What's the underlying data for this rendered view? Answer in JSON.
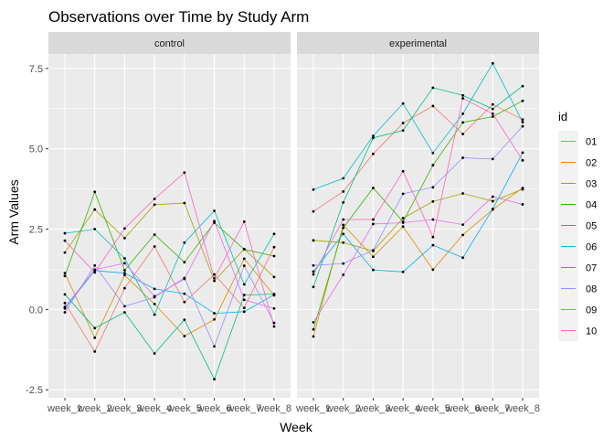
{
  "chart_data": {
    "type": "line",
    "title": "Observations over Time by Study Arm",
    "xlabel": "Week",
    "ylabel": "Arm Values",
    "ylim": [
      -2.75,
      7.95
    ],
    "yticks": [
      -2.5,
      0.0,
      2.5,
      5.0,
      7.5
    ],
    "ytick_labels": [
      "-2.5",
      "0.0",
      "2.5",
      "5.0",
      "7.5"
    ],
    "categories": [
      "week_1",
      "week_2",
      "week_3",
      "week_4",
      "week_5",
      "week_6",
      "week_7",
      "week_8"
    ],
    "legend": {
      "title": "id",
      "position": "right"
    },
    "colors": {
      "01": "#F8766D",
      "02": "#D89000",
      "03": "#A3A500",
      "04": "#39B600",
      "05": "#00BF7D",
      "06": "#00BFC4",
      "07": "#00B0F6",
      "08": "#9590FF",
      "09": "#E76BF3",
      "10": "#FF62BC"
    },
    "ids": [
      "01",
      "02",
      "03",
      "04",
      "05",
      "06",
      "07",
      "08",
      "09",
      "10"
    ],
    "panels": [
      {
        "name": "control",
        "series": [
          {
            "id": "01",
            "values": [
              0.2,
              -1.31,
              0.66,
              1.96,
              0.23,
              1.09,
              0.05,
              1.94
            ]
          },
          {
            "id": "02",
            "values": [
              1.13,
              -0.88,
              1.07,
              0.17,
              -0.83,
              -0.31,
              1.58,
              0.44
            ]
          },
          {
            "id": "03",
            "values": [
              1.77,
              3.11,
              2.22,
              3.26,
              3.31,
              0.89,
              1.88,
              1.01
            ]
          },
          {
            "id": "04",
            "values": [
              1.04,
              3.66,
              1.22,
              2.33,
              1.47,
              2.7,
              1.87,
              1.66
            ]
          },
          {
            "id": "05",
            "values": [
              0.47,
              -0.58,
              -0.09,
              -1.37,
              -0.32,
              -2.17,
              0.45,
              0.48
            ]
          },
          {
            "id": "06",
            "values": [
              2.37,
              2.5,
              1.59,
              -0.16,
              2.08,
              3.07,
              0.78,
              2.35
            ]
          },
          {
            "id": "07",
            "values": [
              0.03,
              1.21,
              1.13,
              0.64,
              0.49,
              -0.12,
              -0.07,
              0.46
            ]
          },
          {
            "id": "08",
            "values": [
              -0.09,
              1.37,
              0.1,
              0.38,
              0.98,
              -1.15,
              1.36,
              -0.42
            ]
          },
          {
            "id": "09",
            "values": [
              0.08,
              1.24,
              1.44,
              0.41,
              0.95,
              2.75,
              0.3,
              0.03
            ]
          },
          {
            "id": "10",
            "values": [
              2.14,
              1.15,
              2.52,
              3.44,
              4.26,
              0.97,
              2.73,
              -0.53
            ]
          }
        ]
      },
      {
        "name": "experimental",
        "series": [
          {
            "id": "01",
            "values": [
              3.05,
              3.67,
              4.84,
              5.8,
              6.33,
              5.46,
              6.38,
              5.91
            ]
          },
          {
            "id": "02",
            "values": [
              -0.84,
              2.63,
              1.64,
              2.58,
              1.24,
              2.32,
              3.11,
              3.78
            ]
          },
          {
            "id": "03",
            "values": [
              2.15,
              2.08,
              1.82,
              2.84,
              3.36,
              3.61,
              3.37,
              3.74
            ]
          },
          {
            "id": "04",
            "values": [
              -0.62,
              2.54,
              3.78,
              2.73,
              4.49,
              5.82,
              6.0,
              6.49
            ]
          },
          {
            "id": "05",
            "values": [
              0.7,
              3.33,
              5.34,
              5.57,
              6.9,
              6.66,
              6.24,
              6.95
            ]
          },
          {
            "id": "06",
            "values": [
              3.73,
              4.08,
              5.4,
              6.41,
              4.87,
              6.09,
              7.66,
              5.83
            ]
          },
          {
            "id": "07",
            "values": [
              1.18,
              2.35,
              1.23,
              1.17,
              2.0,
              1.61,
              3.13,
              4.88
            ]
          },
          {
            "id": "08",
            "values": [
              1.37,
              1.43,
              1.84,
              3.6,
              3.8,
              4.72,
              4.68,
              5.7
            ]
          },
          {
            "id": "09",
            "values": [
              -0.4,
              1.08,
              2.66,
              2.7,
              2.8,
              2.64,
              3.51,
              3.27
            ]
          },
          {
            "id": "10",
            "values": [
              1.09,
              2.8,
              2.8,
              4.3,
              2.25,
              6.57,
              6.09,
              4.64
            ]
          }
        ]
      }
    ]
  }
}
